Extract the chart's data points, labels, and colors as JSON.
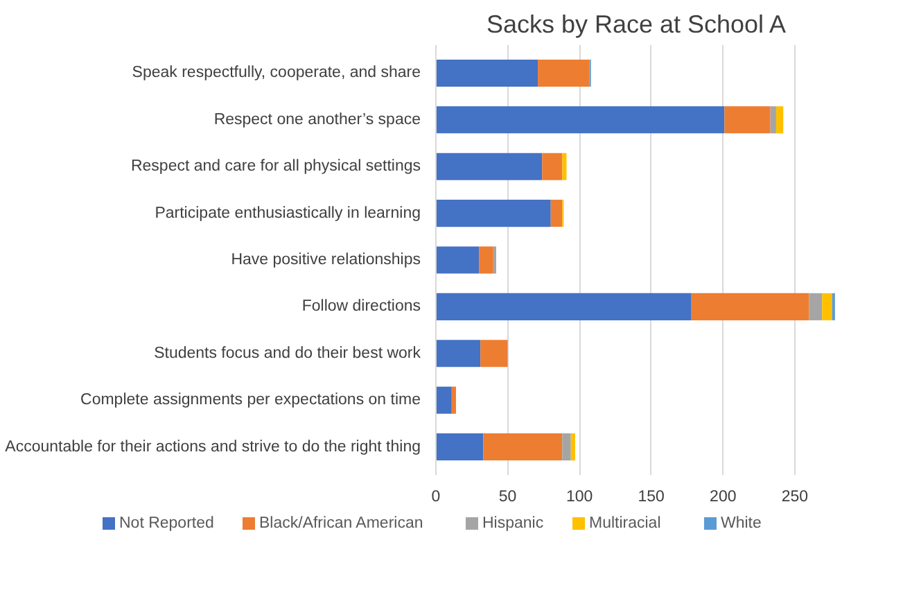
{
  "chart_data": {
    "type": "bar",
    "orientation": "horizontal",
    "stacked": true,
    "title": "Sacks by Race at School A",
    "categories": [
      "Speak respectfully, cooperate, and share",
      "Respect one another’s space",
      "Respect and care for all physical settings",
      "Participate enthusiastically in learning",
      "Have positive relationships",
      "Follow directions",
      "Students focus and do their best work",
      "Complete assignments per expectations on time",
      "Accountable for their actions and strive to do the right thing"
    ],
    "series": [
      {
        "name": "Not Reported",
        "color": "#4472c4",
        "values": [
          71,
          201,
          74,
          80,
          30,
          178,
          31,
          11,
          33
        ]
      },
      {
        "name": "Black/African American",
        "color": "#ed7d31",
        "values": [
          36,
          32,
          14,
          8,
          10,
          82,
          19,
          3,
          55
        ]
      },
      {
        "name": "Hispanic",
        "color": "#a5a5a5",
        "values": [
          null,
          4,
          0,
          null,
          2,
          9,
          0,
          0,
          6
        ]
      },
      {
        "name": "Multiracial",
        "color": "#ffc000",
        "values": [
          0,
          5,
          3,
          1,
          0,
          7,
          0,
          0,
          3
        ]
      },
      {
        "name": "White",
        "color": "#5b9bd5",
        "values": [
          1,
          0,
          0,
          0,
          0,
          2,
          0,
          0,
          0
        ]
      }
    ],
    "xlim": [
      0,
      280
    ],
    "xticks": [
      0,
      50,
      100,
      150,
      200,
      250
    ],
    "grid": "x",
    "legend": "bottom"
  }
}
